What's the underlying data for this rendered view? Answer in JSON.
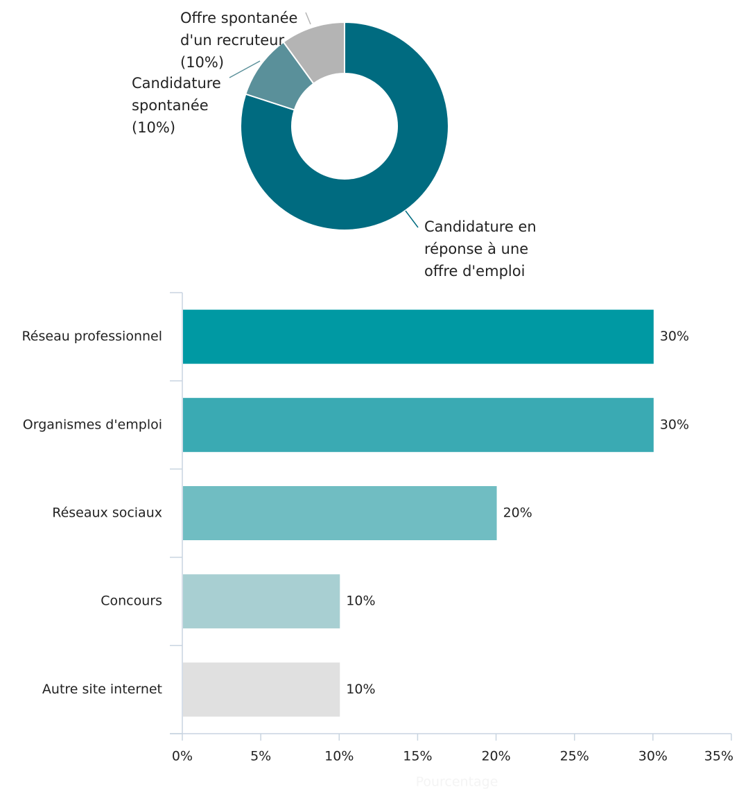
{
  "chart_data": [
    {
      "type": "pie",
      "variant": "donut",
      "slices": [
        {
          "label_lines": [
            "Candidature en",
            "réponse à une",
            "offre d'emploi"
          ],
          "value": 80,
          "color": "#006b80"
        },
        {
          "label_lines": [
            "Candidature",
            "spontanée",
            "(10%)"
          ],
          "value": 10,
          "color": "#5a909a"
        },
        {
          "label_lines": [
            "Offre spontanée",
            "d'un recruteur",
            "(10%)"
          ],
          "value": 10,
          "color": "#b4b4b4"
        }
      ]
    },
    {
      "type": "bar",
      "orientation": "horizontal",
      "categories": [
        "Réseau professionnel",
        "Organismes d'emploi",
        "Réseaux sociaux",
        "Concours",
        "Autre site internet"
      ],
      "values": [
        30,
        30,
        20,
        10,
        10
      ],
      "value_labels": [
        "30%",
        "30%",
        "20%",
        "10%",
        "10%"
      ],
      "colors": [
        "#0099a3",
        "#3aaab3",
        "#70bdc2",
        "#a8cfd2",
        "#e0e0e0"
      ],
      "xlabel": "Pourcentage",
      "xlabel_color": "#f4f4f4",
      "xlim": [
        0,
        35
      ],
      "xticks": [
        0,
        5,
        10,
        15,
        20,
        25,
        30,
        35
      ],
      "xtick_labels": [
        "0%",
        "5%",
        "10%",
        "15%",
        "20%",
        "25%",
        "30%",
        "35%"
      ]
    }
  ]
}
